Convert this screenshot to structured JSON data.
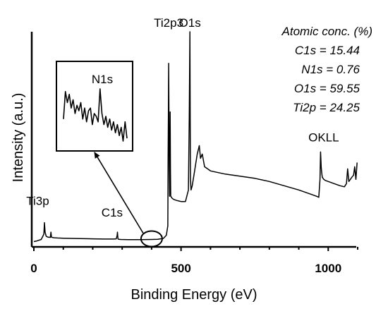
{
  "chart_data": {
    "type": "line",
    "title": "",
    "xlabel": "Binding Energy (eV)",
    "ylabel": "Intensity (a.u.)",
    "xlim": [
      0,
      1100
    ],
    "x_ticks": [
      "0",
      "500",
      "1000"
    ],
    "grid": false,
    "legend": "none",
    "series": [
      {
        "x": [
          0,
          10,
          25,
          34,
          36,
          38,
          42,
          48,
          56,
          58,
          60,
          64,
          70,
          80,
          100,
          130,
          160,
          200,
          240,
          270,
          280,
          283,
          284,
          285,
          286,
          288,
          295,
          320,
          360,
          400,
          420,
          440,
          450,
          455,
          456,
          457,
          458,
          459,
          460,
          461,
          462,
          463,
          464,
          465,
          470,
          475,
          485,
          500,
          515,
          525,
          528,
          530,
          531,
          532,
          534,
          538,
          545,
          555,
          562,
          566,
          572,
          580,
          600,
          650,
          700,
          750,
          800,
          850,
          900,
          940,
          960,
          968,
          972,
          974,
          976,
          978,
          980,
          985,
          990,
          1000,
          1020,
          1040,
          1055,
          1062,
          1066,
          1070,
          1075,
          1080,
          1086,
          1090,
          1094,
          1098
        ],
        "y": [
          0.5,
          0.8,
          1.5,
          4.0,
          9.5,
          5.0,
          3.0,
          2.6,
          2.5,
          5.0,
          2.6,
          2.4,
          2.3,
          2.2,
          2.1,
          2.0,
          1.9,
          1.8,
          1.7,
          1.7,
          1.8,
          3.5,
          5.0,
          3.0,
          1.8,
          1.6,
          1.5,
          1.4,
          1.4,
          1.5,
          1.6,
          2.0,
          3.5,
          8.0,
          40.0,
          60.0,
          85.0,
          60.0,
          37.0,
          22.0,
          30.0,
          62.0,
          35.0,
          22.0,
          21.0,
          20.5,
          20.0,
          19.5,
          19.5,
          25.0,
          60.0,
          100.0,
          60.0,
          30.0,
          25.0,
          27.0,
          33.0,
          42.0,
          46.0,
          40.0,
          42.0,
          36.0,
          34.0,
          32.5,
          31.5,
          30.5,
          29.0,
          27.0,
          25.0,
          23.0,
          22.0,
          21.5,
          30.0,
          43.0,
          36.0,
          33.0,
          31.0,
          30.0,
          29.5,
          29.0,
          28.0,
          27.0,
          26.5,
          28.0,
          35.0,
          29.0,
          30.0,
          31.0,
          32.0,
          36.0,
          30.0,
          38.0
        ]
      }
    ],
    "peak_labels": [
      {
        "text": "Ti3p",
        "x": 37
      },
      {
        "text": "C1s",
        "x": 285
      },
      {
        "text": "Ti2p3",
        "x": 458
      },
      {
        "text": "O1s",
        "x": 530
      },
      {
        "text": "OKLL",
        "x": 975
      }
    ],
    "inset": {
      "label": "N1s",
      "zoom_center_x": 400,
      "values": [
        0.4,
        0.9,
        0.7,
        0.85,
        0.6,
        0.75,
        0.5,
        0.65,
        0.55,
        0.7,
        0.4,
        0.6,
        0.35,
        0.55,
        0.6,
        0.3,
        0.5,
        0.45,
        0.35,
        0.95,
        0.5,
        0.3,
        0.45,
        0.25,
        0.4,
        0.2,
        0.35,
        0.15,
        0.3,
        0.1,
        0.25,
        0.0,
        0.35,
        0.05
      ]
    },
    "annotations": {
      "atomic_conc_title": "Atomic conc. (%)",
      "entries": [
        "C1s = 15.44",
        "N1s = 0.76",
        "O1s = 59.55",
        "Ti2p = 24.25"
      ]
    }
  }
}
